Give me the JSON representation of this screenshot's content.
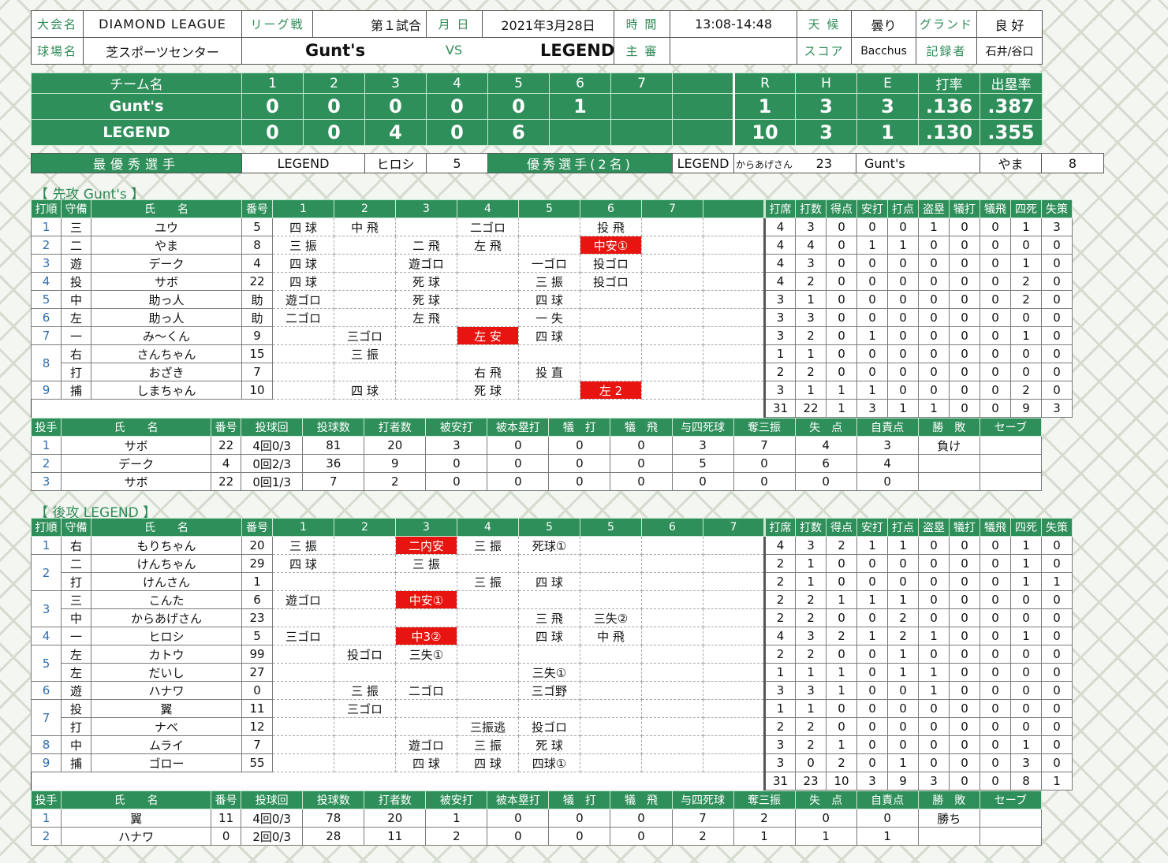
{
  "info": {
    "tournament_label": "大会名",
    "tournament": "DIAMOND LEAGUE",
    "type_label": "リーグ戦",
    "game_no": "第１試合",
    "date_label": "月 日",
    "date": "2021年3月28日",
    "time_label": "時 間",
    "time": "13:08-14:48",
    "weather_label": "天 候",
    "weather": "曇り",
    "ground_label": "グランド",
    "ground": "良 好",
    "venue_label": "球場名",
    "venue": "芝スポーツセンター",
    "team1": "Gunt's",
    "vs": "VS",
    "team2": "LEGEND",
    "umpire_label": "主 審",
    "umpire": "",
    "score_label": "スコア",
    "score_by": "Bacchus",
    "recorder_label": "記録者",
    "recorder": "石井/谷口"
  },
  "scoreboard": {
    "headers": [
      "チーム名",
      "1",
      "2",
      "3",
      "4",
      "5",
      "6",
      "7",
      "",
      "R",
      "H",
      "E",
      "打率",
      "出塁率"
    ],
    "rows": [
      [
        "Gunt's",
        "0",
        "0",
        "0",
        "0",
        "0",
        "1",
        "",
        "",
        "1",
        "3",
        "3",
        ".136",
        ".387"
      ],
      [
        "LEGEND",
        "0",
        "0",
        "4",
        "0",
        "6",
        "",
        "",
        "",
        "10",
        "3",
        "1",
        ".130",
        ".355"
      ]
    ]
  },
  "mvp": {
    "mvp_label": "最優秀選手",
    "mvp_team": "LEGEND",
    "mvp_name": "ヒロシ",
    "mvp_no": "5",
    "good_label": "優秀選手(2名)",
    "g1_team": "LEGEND",
    "g1_name": "からあげさん",
    "g1_no": "23",
    "g2_team": "Gunt's",
    "g2_name": "やま",
    "g2_no": "8"
  },
  "sections": {
    "top": "【 先攻 Gunt's 】",
    "bottom": "【 後攻 LEGEND 】"
  },
  "bat_headers": [
    "打順",
    "守備",
    "氏　　名",
    "番号",
    "1",
    "2",
    "3",
    "4",
    "5",
    "6",
    "7",
    "",
    "打席",
    "打数",
    "得点",
    "安打",
    "打点",
    "盗塁",
    "犠打",
    "犠飛",
    "四死",
    "失策"
  ],
  "bat_headers_b": [
    "打順",
    "守備",
    "氏　　名",
    "番号",
    "1",
    "2",
    "3",
    "4",
    "5",
    "5",
    "6",
    "7",
    "打席",
    "打数",
    "得点",
    "安打",
    "打点",
    "盗塁",
    "犠打",
    "犠飛",
    "四死",
    "失策"
  ],
  "pit_headers": [
    "投手",
    "氏　　名",
    "番号",
    "投球回",
    "投球数",
    "打者数",
    "被安打",
    "被本塁打",
    "犠　打",
    "犠　飛",
    "与四死球",
    "奪三振",
    "失　点",
    "自責点",
    "勝　敗",
    "セーブ"
  ],
  "gunts_bat": [
    {
      "o": "1",
      "p": "三",
      "n": "ユウ",
      "no": "5",
      "inn": [
        "四 球",
        "中 飛",
        "",
        "二ゴロ",
        "",
        "投 飛",
        "",
        ""
      ],
      "hit": [],
      "st": [
        "4",
        "3",
        "0",
        "0",
        "0",
        "1",
        "0",
        "0",
        "1",
        "3"
      ]
    },
    {
      "o": "2",
      "p": "二",
      "n": "やま",
      "no": "8",
      "inn": [
        "三 振",
        "",
        "二 飛",
        "左 飛",
        "",
        "中安①",
        "",
        ""
      ],
      "hit": [
        5
      ],
      "st": [
        "4",
        "4",
        "0",
        "1",
        "1",
        "0",
        "0",
        "0",
        "0",
        "0"
      ]
    },
    {
      "o": "3",
      "p": "遊",
      "n": "デーク",
      "no": "4",
      "inn": [
        "四 球",
        "",
        "遊ゴロ",
        "",
        "一ゴロ",
        "投ゴロ",
        "",
        ""
      ],
      "hit": [],
      "st": [
        "4",
        "3",
        "0",
        "0",
        "0",
        "0",
        "0",
        "0",
        "1",
        "0"
      ]
    },
    {
      "o": "4",
      "p": "投",
      "n": "サボ",
      "no": "22",
      "inn": [
        "四 球",
        "",
        "死 球",
        "",
        "三 振",
        "投ゴロ",
        "",
        ""
      ],
      "hit": [],
      "st": [
        "4",
        "2",
        "0",
        "0",
        "0",
        "0",
        "0",
        "0",
        "2",
        "0"
      ]
    },
    {
      "o": "5",
      "p": "中",
      "n": "助っ人",
      "no": "助",
      "inn": [
        "遊ゴロ",
        "",
        "死 球",
        "",
        "四 球",
        "",
        "",
        ""
      ],
      "hit": [],
      "st": [
        "3",
        "1",
        "0",
        "0",
        "0",
        "0",
        "0",
        "0",
        "2",
        "0"
      ]
    },
    {
      "o": "6",
      "p": "左",
      "n": "助っ人",
      "no": "助",
      "inn": [
        "二ゴロ",
        "",
        "左 飛",
        "",
        "一 失",
        "",
        "",
        ""
      ],
      "hit": [],
      "st": [
        "3",
        "3",
        "0",
        "0",
        "0",
        "0",
        "0",
        "0",
        "0",
        "0"
      ]
    },
    {
      "o": "7",
      "p": "一",
      "n": "み～くん",
      "no": "9",
      "inn": [
        "",
        "三ゴロ",
        "",
        "左 安",
        "四 球",
        "",
        "",
        ""
      ],
      "hit": [
        3
      ],
      "st": [
        "3",
        "2",
        "0",
        "1",
        "0",
        "0",
        "0",
        "0",
        "1",
        "0"
      ]
    },
    {
      "o": "8",
      "p": "右",
      "n": "さんちゃん",
      "no": "15",
      "inn": [
        "",
        "三 振",
        "",
        "",
        "",
        "",
        "",
        ""
      ],
      "hit": [],
      "st": [
        "1",
        "1",
        "0",
        "0",
        "0",
        "0",
        "0",
        "0",
        "0",
        "0"
      ]
    },
    {
      "o": "",
      "p": "打",
      "n": "おざき",
      "no": "7",
      "inn": [
        "",
        "",
        "",
        "右 飛",
        "投 直",
        "",
        "",
        ""
      ],
      "hit": [],
      "st": [
        "2",
        "2",
        "0",
        "0",
        "0",
        "0",
        "0",
        "0",
        "0",
        "0"
      ]
    },
    {
      "o": "9",
      "p": "捕",
      "n": "しまちゃん",
      "no": "10",
      "inn": [
        "",
        "四 球",
        "",
        "死 球",
        "",
        "左 2",
        "",
        ""
      ],
      "hit": [
        5
      ],
      "st": [
        "3",
        "1",
        "1",
        "1",
        "0",
        "0",
        "0",
        "0",
        "2",
        "0"
      ]
    }
  ],
  "gunts_tot": [
    "31",
    "22",
    "1",
    "3",
    "1",
    "1",
    "0",
    "0",
    "9",
    "3"
  ],
  "gunts_pit": [
    [
      "1",
      "サボ",
      "22",
      "4回0/3",
      "81",
      "20",
      "3",
      "0",
      "0",
      "0",
      "3",
      "7",
      "4",
      "3",
      "負け",
      ""
    ],
    [
      "2",
      "デーク",
      "4",
      "0回2/3",
      "36",
      "9",
      "0",
      "0",
      "0",
      "0",
      "5",
      "0",
      "6",
      "4",
      "",
      ""
    ],
    [
      "3",
      "サボ",
      "22",
      "0回1/3",
      "7",
      "2",
      "0",
      "0",
      "0",
      "0",
      "0",
      "0",
      "0",
      "0",
      "",
      ""
    ]
  ],
  "legend_bat": [
    {
      "o": "1",
      "p": "右",
      "n": "もりちゃん",
      "no": "20",
      "inn": [
        "三 振",
        "",
        "二内安",
        "三 振",
        "死球①",
        "",
        "",
        ""
      ],
      "hit": [
        2
      ],
      "st": [
        "4",
        "3",
        "2",
        "1",
        "1",
        "0",
        "0",
        "0",
        "1",
        "0"
      ]
    },
    {
      "o": "2",
      "p": "二",
      "n": "けんちゃん",
      "no": "29",
      "inn": [
        "四 球",
        "",
        "三 振",
        "",
        "",
        "",
        "",
        ""
      ],
      "hit": [],
      "st": [
        "2",
        "1",
        "0",
        "0",
        "0",
        "0",
        "0",
        "0",
        "1",
        "0"
      ]
    },
    {
      "o": "",
      "p": "打",
      "n": "けんさん",
      "no": "1",
      "inn": [
        "",
        "",
        "",
        "三 振",
        "四 球",
        "",
        "",
        ""
      ],
      "hit": [],
      "st": [
        "2",
        "1",
        "0",
        "0",
        "0",
        "0",
        "0",
        "0",
        "1",
        "1"
      ]
    },
    {
      "o": "3",
      "p": "三",
      "n": "こんた",
      "no": "6",
      "inn": [
        "遊ゴロ",
        "",
        "中安①",
        "",
        "",
        "",
        "",
        ""
      ],
      "hit": [
        2
      ],
      "st": [
        "2",
        "2",
        "1",
        "1",
        "1",
        "0",
        "0",
        "0",
        "0",
        "0"
      ]
    },
    {
      "o": "",
      "p": "中",
      "n": "からあげさん",
      "no": "23",
      "inn": [
        "",
        "",
        "",
        "",
        "三 飛",
        "三失②",
        "",
        ""
      ],
      "hit": [],
      "st": [
        "2",
        "2",
        "0",
        "0",
        "2",
        "0",
        "0",
        "0",
        "0",
        "0"
      ]
    },
    {
      "o": "4",
      "p": "一",
      "n": "ヒロシ",
      "no": "5",
      "inn": [
        "三ゴロ",
        "",
        "中3②",
        "",
        "四 球",
        "中 飛",
        "",
        ""
      ],
      "hit": [
        2
      ],
      "st": [
        "4",
        "3",
        "2",
        "1",
        "2",
        "1",
        "0",
        "0",
        "1",
        "0"
      ]
    },
    {
      "o": "5",
      "p": "左",
      "n": "カトウ",
      "no": "99",
      "inn": [
        "",
        "投ゴロ",
        "三失①",
        "",
        "",
        "",
        "",
        ""
      ],
      "hit": [],
      "st": [
        "2",
        "2",
        "0",
        "0",
        "1",
        "0",
        "0",
        "0",
        "0",
        "0"
      ]
    },
    {
      "o": "",
      "p": "左",
      "n": "だいし",
      "no": "27",
      "inn": [
        "",
        "",
        "",
        "",
        "三失①",
        "",
        "",
        ""
      ],
      "hit": [],
      "st": [
        "1",
        "1",
        "1",
        "0",
        "1",
        "1",
        "0",
        "0",
        "0",
        "0"
      ]
    },
    {
      "o": "6",
      "p": "遊",
      "n": "ハナワ",
      "no": "0",
      "inn": [
        "",
        "三 振",
        "二ゴロ",
        "",
        "三ゴ野",
        "",
        "",
        ""
      ],
      "hit": [],
      "st": [
        "3",
        "3",
        "1",
        "0",
        "0",
        "1",
        "0",
        "0",
        "0",
        "0"
      ]
    },
    {
      "o": "7",
      "p": "投",
      "n": "翼",
      "no": "11",
      "inn": [
        "",
        "三ゴロ",
        "",
        "",
        "",
        "",
        "",
        ""
      ],
      "hit": [],
      "st": [
        "1",
        "1",
        "0",
        "0",
        "0",
        "0",
        "0",
        "0",
        "0",
        "0"
      ]
    },
    {
      "o": "",
      "p": "打",
      "n": "ナベ",
      "no": "12",
      "inn": [
        "",
        "",
        "",
        "三振逃",
        "投ゴロ",
        "",
        "",
        ""
      ],
      "hit": [],
      "st": [
        "2",
        "2",
        "0",
        "0",
        "0",
        "0",
        "0",
        "0",
        "0",
        "0"
      ]
    },
    {
      "o": "8",
      "p": "中",
      "n": "ムライ",
      "no": "7",
      "inn": [
        "",
        "",
        "遊ゴロ",
        "三 振",
        "死 球",
        "",
        "",
        ""
      ],
      "hit": [],
      "st": [
        "3",
        "2",
        "1",
        "0",
        "0",
        "0",
        "0",
        "0",
        "1",
        "0"
      ]
    },
    {
      "o": "9",
      "p": "捕",
      "n": "ゴロー",
      "no": "55",
      "inn": [
        "",
        "",
        "四 球",
        "四 球",
        "四球①",
        "",
        "",
        ""
      ],
      "hit": [],
      "st": [
        "3",
        "0",
        "2",
        "0",
        "1",
        "0",
        "0",
        "0",
        "3",
        "0"
      ]
    }
  ],
  "legend_tot": [
    "31",
    "23",
    "10",
    "3",
    "9",
    "3",
    "0",
    "0",
    "8",
    "1"
  ],
  "legend_pit": [
    [
      "1",
      "翼",
      "11",
      "4回0/3",
      "78",
      "20",
      "1",
      "0",
      "0",
      "0",
      "7",
      "2",
      "0",
      "0",
      "勝ち",
      ""
    ],
    [
      "2",
      "ハナワ",
      "0",
      "2回0/3",
      "28",
      "11",
      "2",
      "0",
      "0",
      "0",
      "2",
      "1",
      "1",
      "1",
      "",
      ""
    ]
  ]
}
